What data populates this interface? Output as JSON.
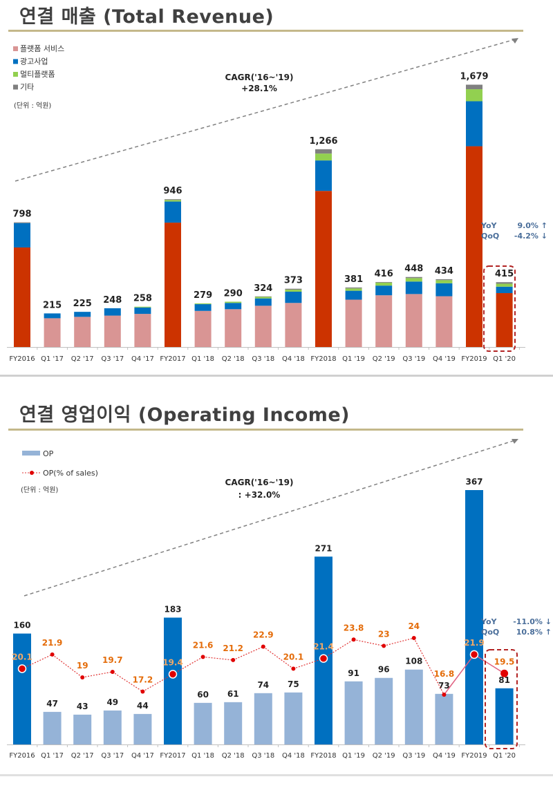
{
  "chart_data": [
    {
      "type": "bar",
      "stacked": true,
      "title": "연결 매출 (Total Revenue)",
      "unit_note": "(단위 : 억원)",
      "legend_placement": "top-left",
      "categories": [
        "FY2016",
        "Q1 '17",
        "Q2 '17",
        "Q3 '17",
        "Q4 '17",
        "FY2017",
        "Q1 '18",
        "Q2 '18",
        "Q3 '18",
        "Q4 '18",
        "FY2018",
        "Q1 '19",
        "Q2 '19",
        "Q3 '19",
        "Q4 '19",
        "FY2019",
        "Q1 '20"
      ],
      "totals": [
        798,
        215,
        225,
        248,
        258,
        946,
        279,
        290,
        324,
        373,
        1266,
        381,
        416,
        448,
        434,
        1679,
        415
      ],
      "total_labels": [
        "798",
        "215",
        "225",
        "248",
        "258",
        "946",
        "279",
        "290",
        "324",
        "373",
        "1,266",
        "381",
        "416",
        "448",
        "434",
        "1,679",
        "415"
      ],
      "series": [
        {
          "name": "플랫폼 서비스",
          "color": "#D99594",
          "annual_color": "#CC3300",
          "values": [
            637,
            184,
            193,
            201,
            212,
            796,
            231,
            242,
            264,
            282,
            999,
            303,
            331,
            339,
            325,
            1285,
            345
          ]
        },
        {
          "name": "광고사업",
          "color": "#0070C0",
          "values": [
            156,
            31,
            32,
            47,
            41,
            135,
            43,
            40,
            47,
            72,
            195,
            57,
            62,
            80,
            83,
            288,
            41
          ]
        },
        {
          "name": "멀티플랫폼",
          "color": "#92D050",
          "values": [
            0,
            0,
            0,
            0,
            5,
            10,
            5,
            8,
            10,
            13,
            44,
            15,
            19,
            22,
            20,
            77,
            19
          ]
        },
        {
          "name": "기타",
          "color": "#808080",
          "values": [
            5,
            0,
            0,
            0,
            0,
            5,
            0,
            0,
            3,
            6,
            28,
            6,
            4,
            7,
            6,
            29,
            10
          ]
        }
      ],
      "ylim": [
        0,
        1700
      ],
      "grid": false,
      "annotations": {
        "cagr_label": "CAGR('16~'19)",
        "cagr_value": "+28.1%",
        "yoy_label": "YoY",
        "yoy_value": "9.0% ↑",
        "qoq_label": "QoQ",
        "qoq_value": "-4.2% ↓",
        "highlight": "Q1 '20"
      }
    },
    {
      "type": "bar",
      "title": "연결 영업이익 (Operating Income)",
      "unit_note": "(단위 : 억원)",
      "legend_placement": "top-left",
      "categories": [
        "FY2016",
        "Q1 '17",
        "Q2 '17",
        "Q3 '17",
        "Q4 '17",
        "FY2017",
        "Q1 '18",
        "Q2 '18",
        "Q3 '18",
        "Q4 '18",
        "FY2018",
        "Q1 '19",
        "Q2 '19",
        "Q3 '19",
        "Q4 '19",
        "FY2019",
        "Q1 '20"
      ],
      "series": [
        {
          "name": "OP",
          "type": "bar",
          "color": "#95B3D7",
          "annual_color": "#0070C0",
          "values": [
            160,
            47,
            43,
            49,
            44,
            183,
            60,
            61,
            74,
            75,
            271,
            91,
            96,
            108,
            73,
            367,
            81
          ]
        },
        {
          "name": "OP(% of sales)",
          "type": "line",
          "color": "#E00000",
          "label_color": "#E46C0A",
          "values": [
            20.1,
            21.9,
            19.0,
            19.7,
            17.2,
            19.4,
            21.6,
            21.2,
            22.9,
            20.1,
            21.4,
            23.8,
            23.0,
            24.0,
            16.8,
            21.9,
            19.5
          ]
        }
      ],
      "ylim": [
        0,
        370
      ],
      "grid": false,
      "annotations": {
        "cagr_label": "CAGR('16~'19)",
        "cagr_value": ": +32.0%",
        "yoy_label": "YoY",
        "yoy_value": "-11.0% ↓",
        "qoq_label": "QoQ",
        "qoq_value": "10.8% ↑",
        "highlight": "Q1 '20"
      }
    }
  ]
}
